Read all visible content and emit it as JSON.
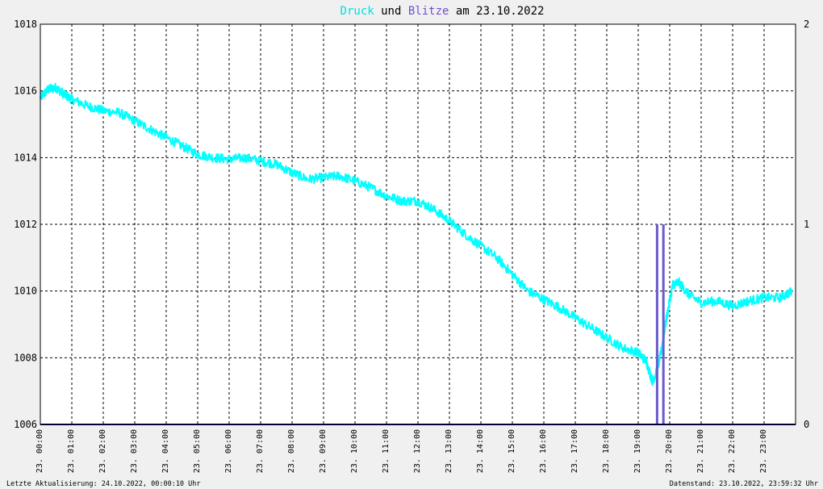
{
  "chart_data": {
    "type": "line",
    "title": {
      "part1": "Druck",
      "part2": " und ",
      "part3": "Blitze",
      "part4": " am 23.10.2022",
      "color_pressure": "#00e0e0",
      "color_lightning": "#7050d0",
      "color_text": "#000000"
    },
    "y_left": {
      "min": 1006,
      "max": 1018,
      "ticks": [
        "1006",
        "1008",
        "1010",
        "1012",
        "1014",
        "1016",
        "1018"
      ]
    },
    "y_right": {
      "min": 0,
      "max": 2,
      "ticks": [
        "0",
        "1",
        "2"
      ]
    },
    "x_range_hours": [
      0,
      24
    ],
    "x_ticks": [
      "23. 00:00",
      "23. 01:00",
      "23. 02:00",
      "23. 03:00",
      "23. 04:00",
      "23. 05:00",
      "23. 06:00",
      "23. 07:00",
      "23. 08:00",
      "23. 09:00",
      "23. 10:00",
      "23. 11:00",
      "23. 12:00",
      "23. 13:00",
      "23. 14:00",
      "23. 15:00",
      "23. 16:00",
      "23. 17:00",
      "23. 18:00",
      "23. 19:00",
      "23. 20:00",
      "23. 21:00",
      "23. 22:00",
      "23. 23:00"
    ],
    "grid": true,
    "series": [
      {
        "name": "Druck",
        "color": "#00ffff",
        "axis": "left",
        "x": [
          0,
          0.25,
          0.5,
          0.75,
          1,
          1.5,
          2,
          2.5,
          3,
          3.5,
          4,
          4.5,
          5,
          5.5,
          6,
          6.5,
          7,
          7.5,
          8,
          8.5,
          9,
          9.5,
          10,
          10.5,
          11,
          11.5,
          12,
          12.5,
          13,
          13.5,
          14,
          14.5,
          15,
          15.5,
          16,
          16.5,
          17,
          17.5,
          18,
          18.5,
          19,
          19.25,
          19.45,
          19.6,
          19.75,
          19.9,
          20.1,
          20.3,
          20.6,
          21,
          21.5,
          22,
          22.5,
          23,
          23.5,
          23.9
        ],
        "y": [
          1015.8,
          1016.05,
          1016.1,
          1015.9,
          1015.75,
          1015.55,
          1015.4,
          1015.35,
          1015.1,
          1014.85,
          1014.6,
          1014.35,
          1014.1,
          1014.0,
          1013.95,
          1014.0,
          1013.9,
          1013.8,
          1013.55,
          1013.35,
          1013.4,
          1013.45,
          1013.3,
          1013.1,
          1012.85,
          1012.7,
          1012.7,
          1012.45,
          1012.1,
          1011.7,
          1011.35,
          1011.0,
          1010.5,
          1010.0,
          1009.75,
          1009.5,
          1009.2,
          1008.9,
          1008.6,
          1008.3,
          1008.15,
          1007.9,
          1007.3,
          1007.6,
          1008.3,
          1009.2,
          1010.2,
          1010.25,
          1009.9,
          1009.65,
          1009.7,
          1009.55,
          1009.7,
          1009.8,
          1009.8,
          1010.0
        ]
      },
      {
        "name": "Blitze",
        "color": "#6a5acd",
        "axis": "right",
        "type": "bar",
        "x": [
          19.6,
          19.8
        ],
        "values": [
          1,
          1
        ]
      }
    ]
  },
  "footer": {
    "left": "Letzte Aktualisierung: 24.10.2022, 00:00:10 Uhr",
    "right": "Datenstand: 23.10.2022, 23:59:32 Uhr"
  }
}
